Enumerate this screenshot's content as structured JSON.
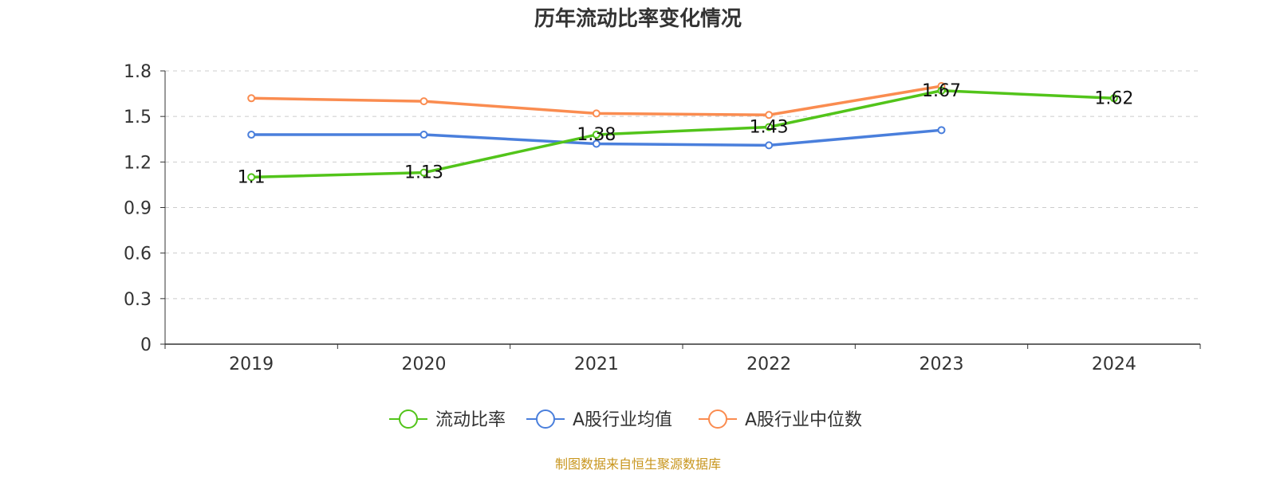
{
  "chart_data": {
    "type": "line",
    "title": "历年流动比率变化情况",
    "categories": [
      "2019",
      "2020",
      "2021",
      "2022",
      "2023",
      "2024"
    ],
    "ylim": [
      0,
      1.8
    ],
    "yticks": [
      "0",
      "0.3",
      "0.6",
      "0.9",
      "1.2",
      "1.5",
      "1.8"
    ],
    "grid": true,
    "legend_position": "bottom",
    "series": [
      {
        "name": "流动比率",
        "color": "#52c41a",
        "values": [
          1.1,
          1.13,
          1.38,
          1.43,
          1.67,
          1.62
        ],
        "labels": [
          "1.1",
          "1.13",
          "1.38",
          "1.43",
          "1.67",
          "1.62"
        ]
      },
      {
        "name": "A股行业均值",
        "color": "#4a7fdc",
        "values": [
          1.38,
          1.38,
          1.32,
          1.31,
          1.41,
          null
        ]
      },
      {
        "name": "A股行业中位数",
        "color": "#fa8c50",
        "values": [
          1.62,
          1.6,
          1.52,
          1.51,
          1.7,
          null
        ]
      }
    ]
  },
  "source_note": "制图数据来自恒生聚源数据库",
  "source_color": "#c8961e"
}
